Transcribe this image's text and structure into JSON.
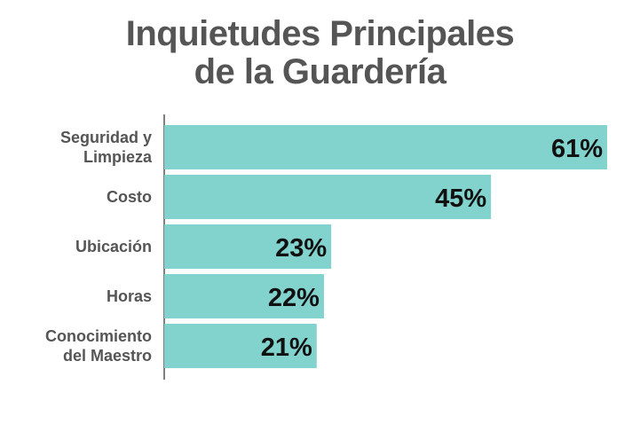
{
  "title_line1": "Inquietudes Principales",
  "title_line2": "de la Guardería",
  "colors": {
    "bar": "#82d3cd",
    "axis": "#555555",
    "title": "#555555",
    "value_text": "#111111"
  },
  "chart_data": {
    "type": "bar",
    "orientation": "horizontal",
    "title": "Inquietudes Principales de la Guardería",
    "categories": [
      [
        "Seguridad y",
        "Limpieza"
      ],
      [
        "Costo"
      ],
      [
        "Ubicación"
      ],
      [
        "Horas"
      ],
      [
        "Conocimiento",
        "del Maestro"
      ]
    ],
    "values": [
      61,
      45,
      23,
      22,
      21
    ],
    "value_labels": [
      "61%",
      "45%",
      "23%",
      "22%",
      "21%"
    ],
    "xlim": [
      0,
      61
    ],
    "grid": false,
    "legend": "none"
  }
}
